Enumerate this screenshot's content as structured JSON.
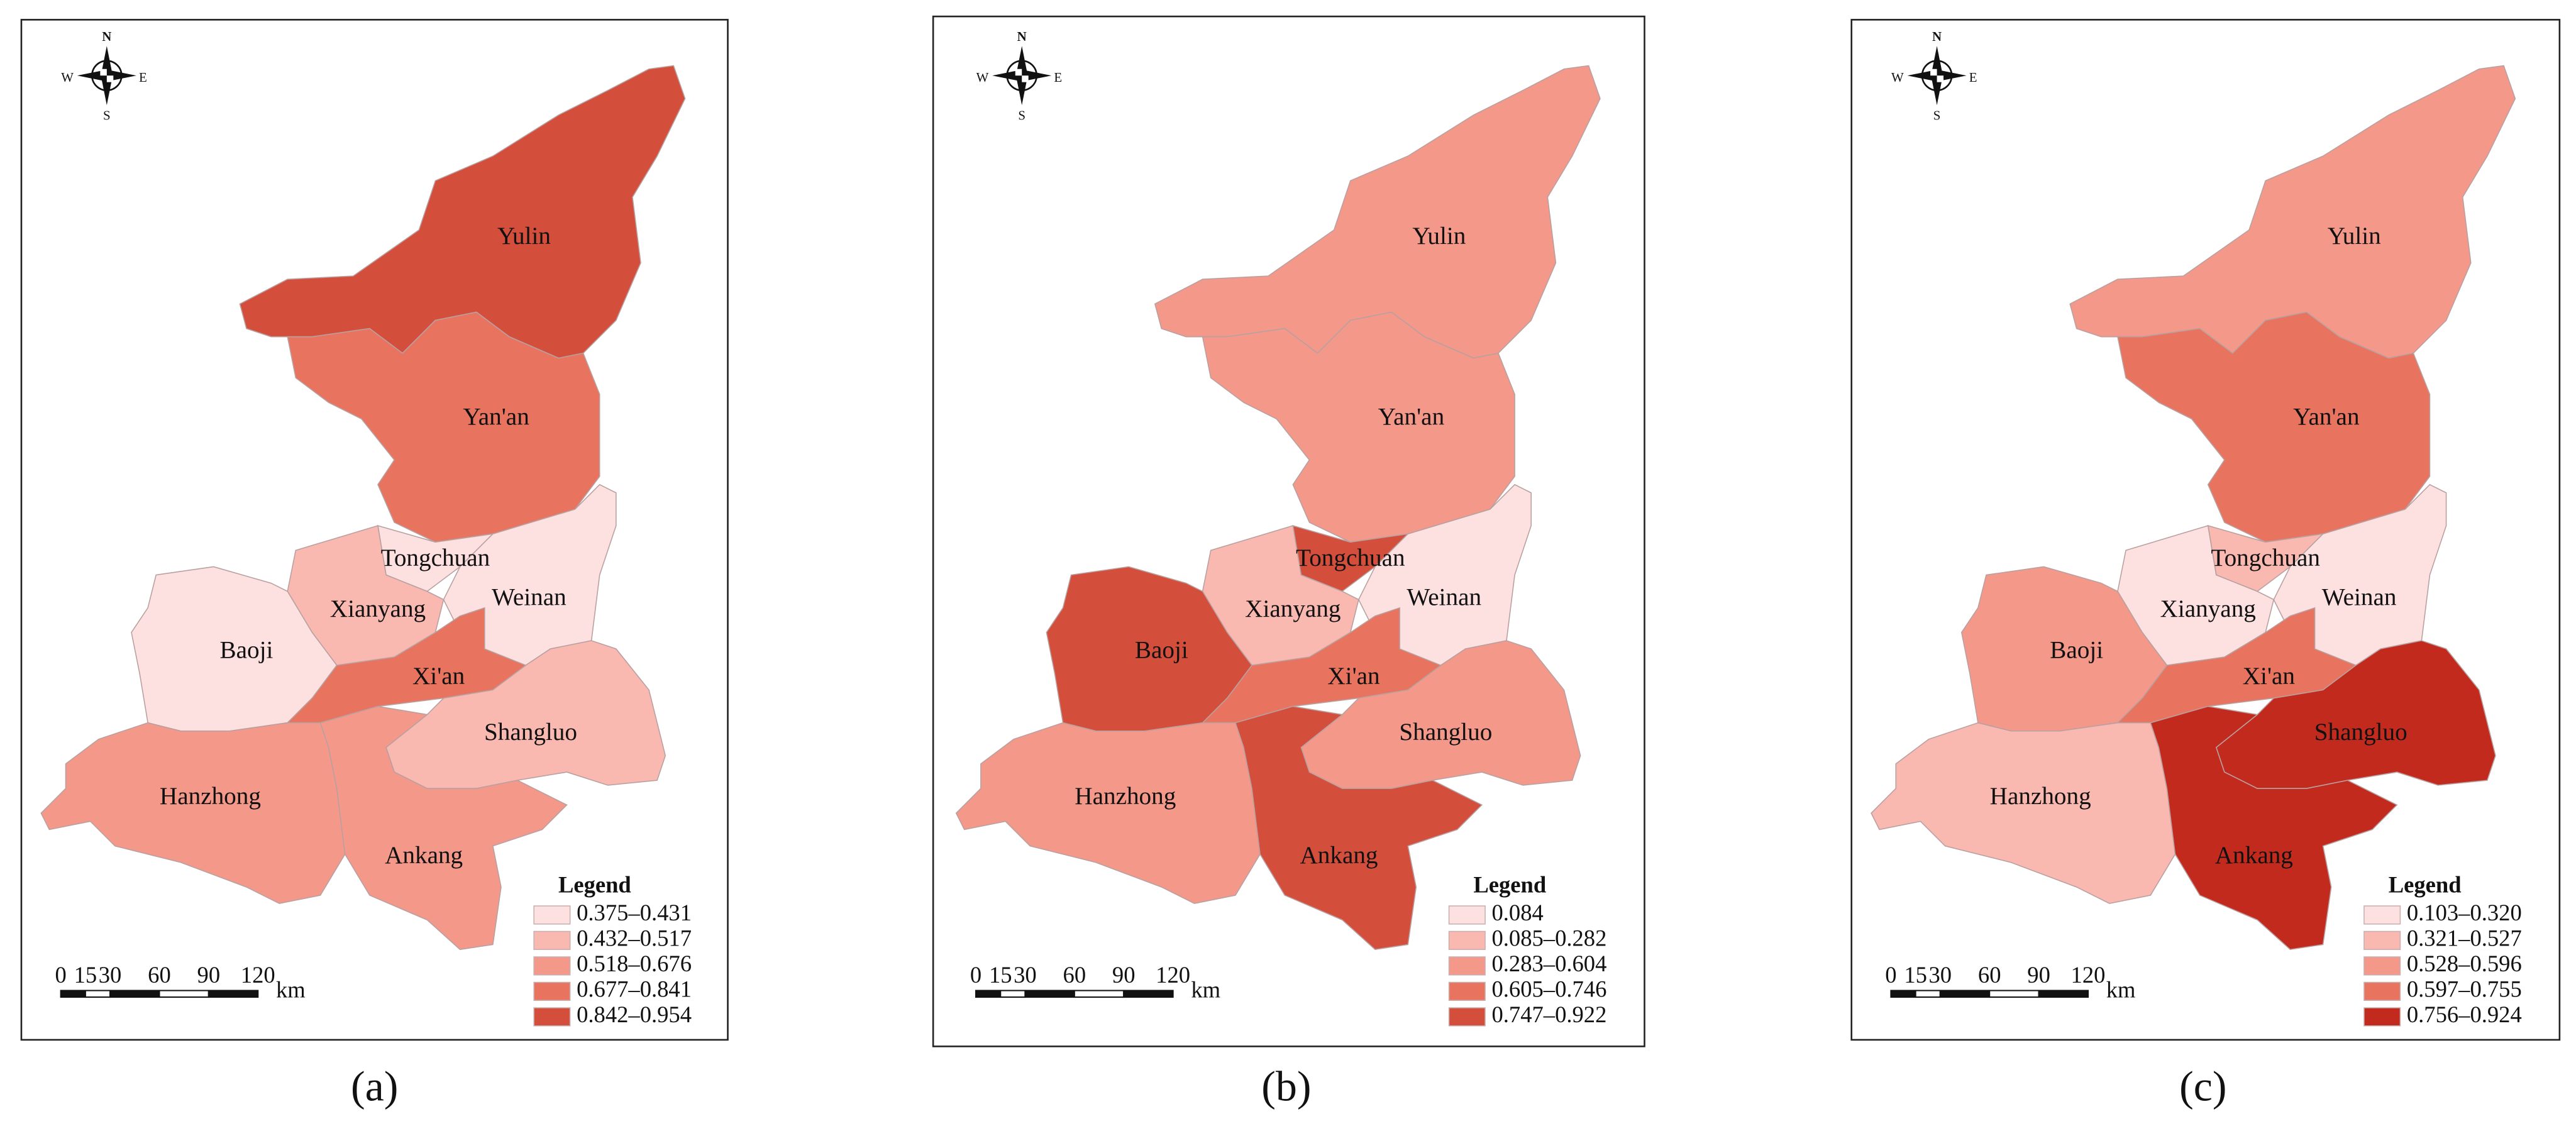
{
  "maps": [
    {
      "panel_label": "(a)",
      "compass": {
        "n": "N",
        "s": "S",
        "e": "E",
        "w": "W"
      },
      "regions": [
        {
          "name": "Yulin",
          "color": "#d44e3c"
        },
        {
          "name": "Yan'an",
          "color": "#e8735f"
        },
        {
          "name": "Tongchuan",
          "color": "#fde0e0"
        },
        {
          "name": "Weinan",
          "color": "#fde0e0"
        },
        {
          "name": "Xianyang",
          "color": "#f9b8b0"
        },
        {
          "name": "Baoji",
          "color": "#fde0e0"
        },
        {
          "name": "Xi'an",
          "color": "#e8735f"
        },
        {
          "name": "Shangluo",
          "color": "#f9b8b0"
        },
        {
          "name": "Hanzhong",
          "color": "#f4988a"
        },
        {
          "name": "Ankang",
          "color": "#f4988a"
        }
      ],
      "legend": {
        "title": "Legend",
        "items": [
          {
            "label": "0.375–0.431",
            "color": "#fde0e0"
          },
          {
            "label": "0.432–0.517",
            "color": "#f9b8b0"
          },
          {
            "label": "0.518–0.676",
            "color": "#f4988a"
          },
          {
            "label": "0.677–0.841",
            "color": "#e8735f"
          },
          {
            "label": "0.842–0.954",
            "color": "#d44e3c"
          }
        ]
      },
      "scale_bar": {
        "ticks": [
          "0",
          "15",
          "30",
          "60",
          "90",
          "120"
        ],
        "unit": "km"
      }
    },
    {
      "panel_label": "(b)",
      "compass": {
        "n": "N",
        "s": "S",
        "e": "E",
        "w": "W"
      },
      "regions": [
        {
          "name": "Yulin",
          "color": "#f4988a"
        },
        {
          "name": "Yan'an",
          "color": "#f4988a"
        },
        {
          "name": "Tongchuan",
          "color": "#d44e3c"
        },
        {
          "name": "Weinan",
          "color": "#fde0e0"
        },
        {
          "name": "Xianyang",
          "color": "#f9b8b0"
        },
        {
          "name": "Baoji",
          "color": "#d44e3c"
        },
        {
          "name": "Xi'an",
          "color": "#e8735f"
        },
        {
          "name": "Shangluo",
          "color": "#f4988a"
        },
        {
          "name": "Hanzhong",
          "color": "#f4988a"
        },
        {
          "name": "Ankang",
          "color": "#d44e3c"
        }
      ],
      "legend": {
        "title": "Legend",
        "items": [
          {
            "label": "0.084",
            "color": "#fde0e0"
          },
          {
            "label": "0.085–0.282",
            "color": "#f9b8b0"
          },
          {
            "label": "0.283–0.604",
            "color": "#f4988a"
          },
          {
            "label": "0.605–0.746",
            "color": "#e8735f"
          },
          {
            "label": "0.747–0.922",
            "color": "#d44e3c"
          }
        ]
      },
      "scale_bar": {
        "ticks": [
          "0",
          "15",
          "30",
          "60",
          "90",
          "120"
        ],
        "unit": "km"
      }
    },
    {
      "panel_label": "(c)",
      "compass": {
        "n": "N",
        "s": "S",
        "e": "E",
        "w": "W"
      },
      "regions": [
        {
          "name": "Yulin",
          "color": "#f4988a"
        },
        {
          "name": "Yan'an",
          "color": "#e8735f"
        },
        {
          "name": "Tongchuan",
          "color": "#f9b8b0"
        },
        {
          "name": "Weinan",
          "color": "#fde0e0"
        },
        {
          "name": "Xianyang",
          "color": "#fde0e0"
        },
        {
          "name": "Baoji",
          "color": "#f4988a"
        },
        {
          "name": "Xi'an",
          "color": "#e8735f"
        },
        {
          "name": "Shangluo",
          "color": "#c32a1e"
        },
        {
          "name": "Hanzhong",
          "color": "#f9b8b0"
        },
        {
          "name": "Ankang",
          "color": "#c32a1e"
        }
      ],
      "legend": {
        "title": "Legend",
        "items": [
          {
            "label": "0.103–0.320",
            "color": "#fde0e0"
          },
          {
            "label": "0.321–0.527",
            "color": "#f9b8b0"
          },
          {
            "label": "0.528–0.596",
            "color": "#f4988a"
          },
          {
            "label": "0.597–0.755",
            "color": "#e8735f"
          },
          {
            "label": "0.756–0.924",
            "color": "#c32a1e"
          }
        ]
      },
      "scale_bar": {
        "ticks": [
          "0",
          "15",
          "30",
          "60",
          "90",
          "120"
        ],
        "unit": "km"
      }
    }
  ]
}
